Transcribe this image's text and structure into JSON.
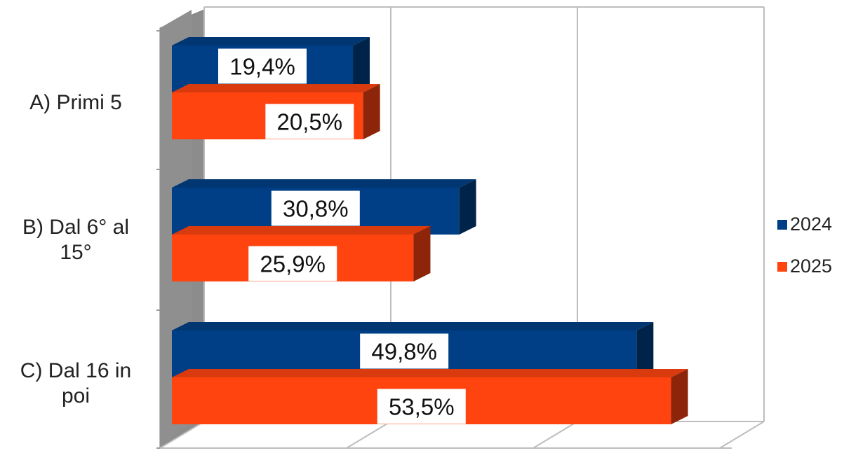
{
  "chart_data": {
    "type": "bar",
    "orientation": "horizontal",
    "style": "3d",
    "categories": [
      "A) Primi 5",
      "B) Dal 6° al 15°",
      "C) Dal 16 in poi"
    ],
    "category_lines": [
      [
        "A) Primi 5"
      ],
      [
        "B) Dal 6° al",
        "15°"
      ],
      [
        "C) Dal 16 in",
        "poi"
      ]
    ],
    "series": [
      {
        "name": "2024",
        "color": "#003F86",
        "values": [
          19.4,
          30.8,
          49.8
        ],
        "labels": [
          "19,4%",
          "30,8%",
          "49,8%"
        ]
      },
      {
        "name": "2025",
        "color": "#FF4410",
        "values": [
          20.5,
          25.9,
          53.5
        ],
        "labels": [
          "20,5%",
          "25,9%",
          "53,5%"
        ]
      }
    ],
    "xlim": [
      0,
      60
    ],
    "grid": true,
    "legend_position": "right"
  }
}
